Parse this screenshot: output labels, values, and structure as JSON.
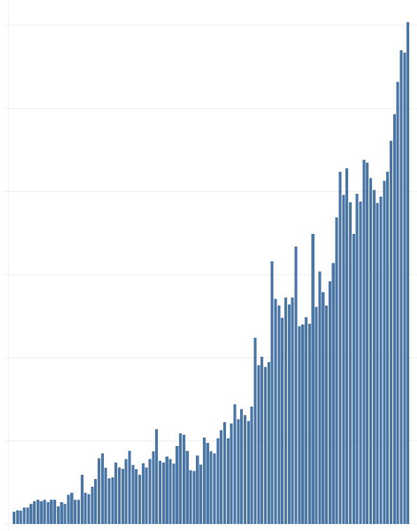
{
  "chart_data": {
    "type": "bar",
    "title": "",
    "xlabel": "",
    "ylabel": "",
    "grid": true,
    "legend": "none",
    "ylim": [
      0,
      120
    ],
    "gridlines": [
      0,
      20,
      40,
      60,
      80,
      100,
      120
    ],
    "bar_color": "#4e79a7",
    "values": [
      3.0,
      3.3,
      3.2,
      4.0,
      4.0,
      4.8,
      5.5,
      5.8,
      5.5,
      5.8,
      5.2,
      5.8,
      5.8,
      4.2,
      5.2,
      4.8,
      7.0,
      7.5,
      5.8,
      5.8,
      11.8,
      7.5,
      7.2,
      9.0,
      10.8,
      15.8,
      17.0,
      13.5,
      11.0,
      11.2,
      14.8,
      13.6,
      13.3,
      15.6,
      17.6,
      14.2,
      13.2,
      11.8,
      14.6,
      13.6,
      15.6,
      17.5,
      22.8,
      15.2,
      14.8,
      16.2,
      15.6,
      14.5,
      18.8,
      21.8,
      21.5,
      17.6,
      12.9,
      12.8,
      16.5,
      14.3,
      20.8,
      19.5,
      17.5,
      17.0,
      20.6,
      22.6,
      24.5,
      20.6,
      24.2,
      28.8,
      25.2,
      27.6,
      26.2,
      24.8,
      28.2,
      44.8,
      38.2,
      40.2,
      37.8,
      39.0,
      63.2,
      54.2,
      52.6,
      49.6,
      54.5,
      52.8,
      54.5,
      66.8,
      47.6,
      48.0,
      49.8,
      48.2,
      69.8,
      52.2,
      60.8,
      55.8,
      52.6,
      58.4,
      62.8,
      73.8,
      84.8,
      79.2,
      85.6,
      77.4,
      69.8,
      79.4,
      77.6,
      87.6,
      87.0,
      83.2,
      80.4,
      77.2,
      78.8,
      82.6,
      84.8,
      92.2,
      98.6,
      106.4,
      114.0,
      113.4,
      120.8
    ]
  }
}
